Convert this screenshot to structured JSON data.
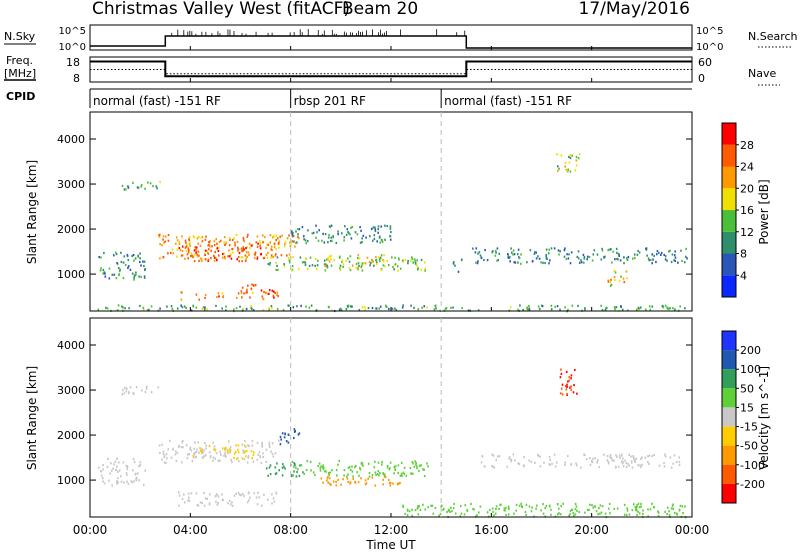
{
  "header": {
    "title": "Christmas Valley West (fitACF)",
    "beam": "Beam 20",
    "date": "17/May/2016"
  },
  "left_labels": {
    "nsky": "N.Sky",
    "freq_line1": "Freq.",
    "freq_line2": "[MHz]",
    "cpid": "CPID"
  },
  "right_labels": {
    "nsearch": "N.Search",
    "nave": "Nave"
  },
  "nsky_ticks": {
    "top": "10^5",
    "bottom": "10^0"
  },
  "nsearch_ticks": {
    "top": "10^5",
    "bottom": "10^0"
  },
  "freq_ticks": {
    "top": "18",
    "bottom": "8"
  },
  "nave_ticks": {
    "top": "60",
    "bottom": "0"
  },
  "cpid_segments": [
    {
      "label": "normal (fast) -151 RF",
      "start": 0,
      "end": 8
    },
    {
      "label": "rbsp 201 RF",
      "start": 8,
      "end": 14
    },
    {
      "label": "normal (fast) -151 RF",
      "start": 14,
      "end": 24
    }
  ],
  "panels": {
    "ylabel": "Slant Range [km]",
    "xlabel": "Time UT",
    "y_ticks": [
      "1000",
      "2000",
      "3000",
      "4000"
    ],
    "x_ticks": [
      "00:00",
      "04:00",
      "08:00",
      "12:00",
      "16:00",
      "20:00",
      "00:00"
    ]
  },
  "power_scale": {
    "label": "Power [dB]",
    "ticks": [
      "4",
      "8",
      "12",
      "16",
      "20",
      "24",
      "28"
    ],
    "colors": [
      "#0a28ff",
      "#2a57b7",
      "#2f8f6a",
      "#4cbf3a",
      "#f0e000",
      "#ff9900",
      "#ff5a00",
      "#ff0000"
    ]
  },
  "velocity_scale": {
    "label": "Velocity [m s^-1]",
    "ticks": [
      "200",
      "100",
      "50",
      "15",
      "-15",
      "-50",
      "-100",
      "-200"
    ],
    "colors": [
      "#1f35ff",
      "#1f58b0",
      "#2f9f5a",
      "#5fd03a",
      "#c8c8c8",
      "#ffcc00",
      "#ff9900",
      "#ff5a00",
      "#ff0000"
    ]
  },
  "chart_data": [
    {
      "type": "line",
      "name": "N.Sky / N.Search",
      "x": [
        0,
        3,
        3,
        15,
        15,
        24
      ],
      "values": [
        0.8,
        0.8,
        2.8,
        2.8,
        0.4,
        0.4
      ],
      "xlim": [
        0,
        24
      ]
    },
    {
      "type": "line",
      "name": "Freq / Nave",
      "series": [
        {
          "name": "Freq.",
          "x": [
            0,
            3,
            3,
            15,
            15,
            24
          ],
          "values": [
            16.2,
            16.2,
            10.3,
            10.3,
            16.2,
            16.2
          ]
        },
        {
          "name": "Nave",
          "x": [
            0,
            3,
            3,
            15,
            15,
            24
          ],
          "values": [
            30,
            30,
            20,
            20,
            30,
            30
          ]
        }
      ],
      "ylim": [
        8,
        18
      ],
      "xlim": [
        0,
        24
      ]
    },
    {
      "type": "heatmap",
      "name": "Power",
      "xlabel": "Time UT",
      "ylabel": "Slant Range [km]",
      "xlim": [
        0,
        24
      ],
      "ylim": [
        180,
        4600
      ],
      "patches": [
        {
          "t": [
            2.7,
            8.3
          ],
          "r": [
            1350,
            1900
          ],
          "v": 22
        },
        {
          "t": [
            3.5,
            6.8
          ],
          "r": [
            1300,
            1700
          ],
          "v": 27
        },
        {
          "t": [
            3.5,
            7.5
          ],
          "r": [
            450,
            620
          ],
          "v": 24
        },
        {
          "t": [
            6.0,
            7.4
          ],
          "r": [
            580,
            800
          ],
          "v": 28
        },
        {
          "t": [
            0.3,
            2.2
          ],
          "r": [
            900,
            1500
          ],
          "v": 10
        },
        {
          "t": [
            1.2,
            2.8
          ],
          "r": [
            2900,
            3100
          ],
          "v": 12
        },
        {
          "t": [
            7.0,
            13.5
          ],
          "r": [
            1100,
            1400
          ],
          "v": 14
        },
        {
          "t": [
            9.3,
            11.7
          ],
          "r": [
            1150,
            1450
          ],
          "v": 18
        },
        {
          "t": [
            8.0,
            12.0
          ],
          "r": [
            1700,
            2100
          ],
          "v": 10
        },
        {
          "t": [
            14.2,
            14.9
          ],
          "r": [
            1050,
            1350
          ],
          "v": 8
        },
        {
          "t": [
            15.2,
            23.8
          ],
          "r": [
            1250,
            1600
          ],
          "v": 9
        },
        {
          "t": [
            20.6,
            21.4
          ],
          "r": [
            750,
            1100
          ],
          "v": 20
        },
        {
          "t": [
            18.5,
            19.5
          ],
          "r": [
            3300,
            3700
          ],
          "v": 16
        },
        {
          "t": [
            0.1,
            23.9
          ],
          "r": [
            200,
            330
          ],
          "v": 12
        }
      ]
    },
    {
      "type": "heatmap",
      "name": "Velocity",
      "xlabel": "Time UT",
      "ylabel": "Slant Range [km]",
      "xlim": [
        0,
        24
      ],
      "ylim": [
        180,
        4600
      ],
      "patches": [
        {
          "t": [
            2.7,
            7.5
          ],
          "r": [
            1400,
            1900
          ],
          "v": 0
        },
        {
          "t": [
            4.0,
            6.5
          ],
          "r": [
            1500,
            1800
          ],
          "v": -40
        },
        {
          "t": [
            0.3,
            2.2
          ],
          "r": [
            900,
            1500
          ],
          "v": 0
        },
        {
          "t": [
            1.2,
            2.8
          ],
          "r": [
            2900,
            3100
          ],
          "v": 0
        },
        {
          "t": [
            3.5,
            7.5
          ],
          "r": [
            450,
            750
          ],
          "v": 0
        },
        {
          "t": [
            7.0,
            8.5
          ],
          "r": [
            1100,
            1400
          ],
          "v": 60
        },
        {
          "t": [
            8.0,
            13.5
          ],
          "r": [
            1100,
            1450
          ],
          "v": 40
        },
        {
          "t": [
            9.0,
            12.5
          ],
          "r": [
            900,
            1100
          ],
          "v": -60
        },
        {
          "t": [
            15.5,
            23.5
          ],
          "r": [
            1300,
            1600
          ],
          "v": 0
        },
        {
          "t": [
            18.7,
            19.4
          ],
          "r": [
            2900,
            3500
          ],
          "v": -200
        },
        {
          "t": [
            12.0,
            23.8
          ],
          "r": [
            200,
            500
          ],
          "v": 30
        },
        {
          "t": [
            7.5,
            8.2
          ],
          "r": [
            1800,
            2100
          ],
          "v": 180
        },
        {
          "t": [
            8.1,
            8.4
          ],
          "r": [
            2000,
            2200
          ],
          "v": 150
        }
      ]
    }
  ]
}
